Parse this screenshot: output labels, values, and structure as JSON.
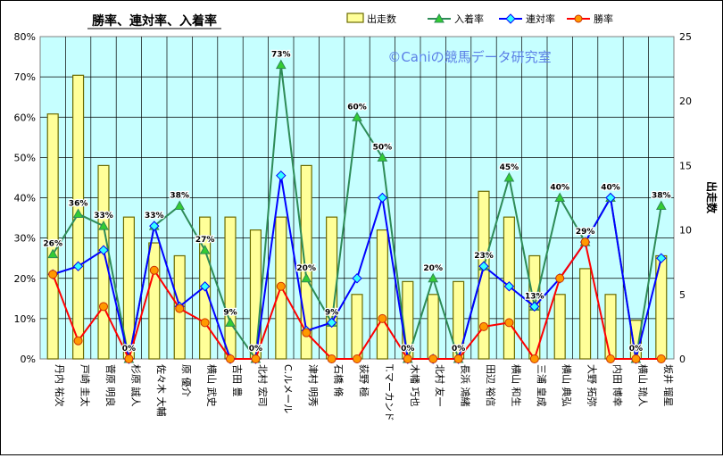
{
  "chart_data": {
    "type": "bar+line",
    "title": "勝率、連対率、入着率",
    "watermark": "©Caniの競馬データ研究室",
    "y2label": "出走数",
    "ylim": [
      0,
      80
    ],
    "y2lim": [
      0,
      25
    ],
    "yticks": [
      "0%",
      "10%",
      "20%",
      "30%",
      "40%",
      "50%",
      "60%",
      "70%",
      "80%"
    ],
    "y2ticks": [
      "0",
      "5",
      "10",
      "15",
      "20",
      "25"
    ],
    "grid": true,
    "legend_position": "top",
    "plot_bg": "#c6ffff",
    "categories": [
      "丹内 祐次",
      "戸崎 圭太",
      "菅原 明良",
      "杉原 誠人",
      "佐々木 大輔",
      "原 優介",
      "横山 武史",
      "吉田 豊",
      "北村 宏司",
      "C.ルメール",
      "津村 明秀",
      "石橋 脩",
      "荻野 極",
      "T.マーカンド",
      "木幡 巧也",
      "北村 友一",
      "長浜 鴻緒",
      "田辺 裕信",
      "横山 和生",
      "三浦 皇成",
      "横山 典弘",
      "大野 拓弥",
      "内田 博幸",
      "横山 琉人",
      "坂井 瑠星"
    ],
    "series": [
      {
        "name": "出走数",
        "type": "bar",
        "axis": "right",
        "color": "#ffff99",
        "edge": "#6b6b00",
        "values": [
          19,
          22,
          15,
          11,
          9,
          8,
          11,
          11,
          10,
          11,
          15,
          11,
          5,
          10,
          6,
          5,
          6,
          13,
          11,
          8,
          5,
          7,
          5,
          3,
          8
        ]
      },
      {
        "name": "入着率",
        "type": "line",
        "axis": "left",
        "color": "#2e8b57",
        "marker": "triangle",
        "marker_color": "#33cc33",
        "values": [
          26,
          36,
          33,
          0,
          33,
          38,
          27,
          9,
          0,
          73,
          20,
          9,
          60,
          50,
          0,
          20,
          0,
          23,
          45,
          13,
          40,
          29,
          40,
          0,
          38
        ]
      },
      {
        "name": "連対率",
        "type": "line",
        "axis": "left",
        "color": "#0000ff",
        "marker": "diamond",
        "marker_color": "#33ffff",
        "values": [
          21,
          23,
          27,
          0,
          33,
          13,
          18,
          0,
          0,
          45.5,
          7,
          9,
          20,
          40,
          0,
          0,
          0,
          23,
          18,
          13,
          20,
          29,
          40,
          0,
          25
        ]
      },
      {
        "name": "勝率",
        "type": "line",
        "axis": "left",
        "color": "#ff0000",
        "marker": "circle",
        "marker_color": "#ff9900",
        "values": [
          21,
          4.5,
          13,
          0,
          22,
          12.5,
          9,
          0,
          0,
          18,
          6.5,
          0,
          0,
          10,
          0,
          0,
          0,
          8,
          9,
          0,
          20,
          29,
          0,
          0,
          0
        ]
      }
    ],
    "data_labels": {
      "series": "入着率",
      "values": [
        "26%",
        "36%",
        "33%",
        "0%",
        "33%",
        "38%",
        "27%",
        "9%",
        "0%",
        "73%",
        "20%",
        "9%",
        "60%",
        "50%",
        "0%",
        "20%",
        "0%",
        "23%",
        "45%",
        "13%",
        "40%",
        "29%",
        "40%",
        "0%",
        "38%"
      ]
    }
  }
}
